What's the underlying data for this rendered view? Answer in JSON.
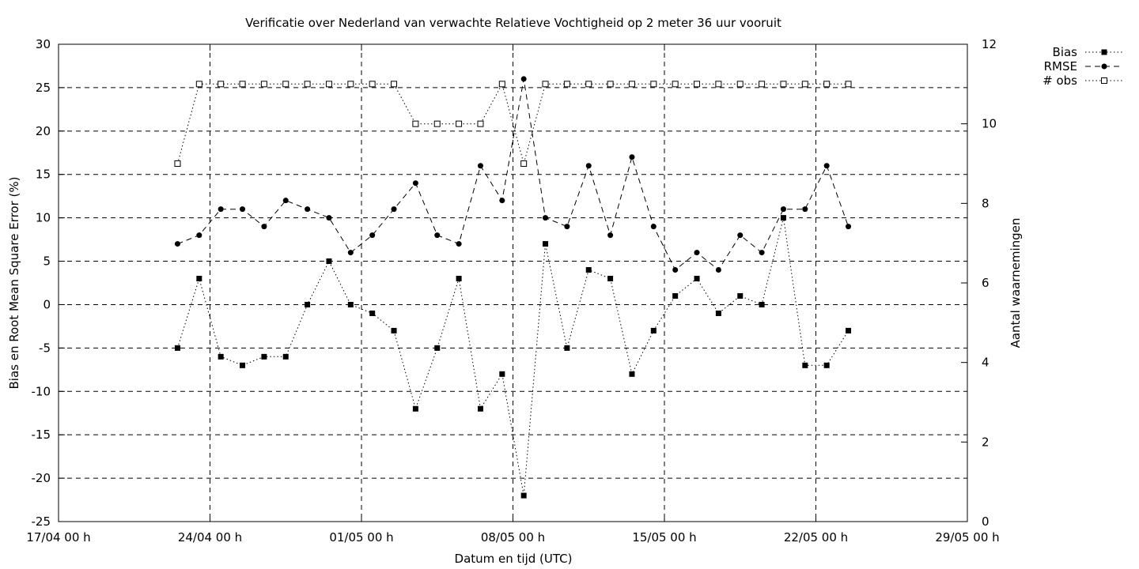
{
  "chart_data": {
    "type": "line",
    "title": "Verificatie over Nederland van verwachte Relatieve Vochtigheid op 2 meter 36 uur vooruit",
    "xlabel": "Datum en tijd (UTC)",
    "ylabel": "Bias en Root Mean Square Error (%)",
    "y2label": "Aantal waarnemingen",
    "x_range": [
      "2023-04-17",
      "2023-05-29"
    ],
    "x_ticks": [
      {
        "date": "2023-04-17",
        "label": "17/04 00 h"
      },
      {
        "date": "2023-04-24",
        "label": "24/04 00 h"
      },
      {
        "date": "2023-05-01",
        "label": "01/05 00 h"
      },
      {
        "date": "2023-05-08",
        "label": "08/05 00 h"
      },
      {
        "date": "2023-05-15",
        "label": "15/05 00 h"
      },
      {
        "date": "2023-05-22",
        "label": "22/05 00 h"
      },
      {
        "date": "2023-05-29",
        "label": "29/05 00 h"
      }
    ],
    "ylim": [
      -25,
      30
    ],
    "y_ticks": [
      -25,
      -20,
      -15,
      -10,
      -5,
      0,
      5,
      10,
      15,
      20,
      25,
      30
    ],
    "y2lim": [
      0,
      12
    ],
    "y2_ticks": [
      0,
      2,
      4,
      6,
      8,
      10,
      12
    ],
    "grid": true,
    "legend_position": "top-right outside",
    "x": [
      "2023-04-22 12:00",
      "2023-04-23 12:00",
      "2023-04-24 12:00",
      "2023-04-25 12:00",
      "2023-04-26 12:00",
      "2023-04-27 12:00",
      "2023-04-28 12:00",
      "2023-04-29 12:00",
      "2023-04-30 12:00",
      "2023-05-01 12:00",
      "2023-05-02 12:00",
      "2023-05-03 12:00",
      "2023-05-04 12:00",
      "2023-05-05 12:00",
      "2023-05-06 12:00",
      "2023-05-07 12:00",
      "2023-05-08 12:00",
      "2023-05-09 12:00",
      "2023-05-10 12:00",
      "2023-05-11 12:00",
      "2023-05-12 12:00",
      "2023-05-13 12:00",
      "2023-05-14 12:00",
      "2023-05-15 12:00",
      "2023-05-16 12:00",
      "2023-05-17 12:00",
      "2023-05-18 12:00",
      "2023-05-19 12:00",
      "2023-05-20 12:00",
      "2023-05-21 12:00",
      "2023-05-22 12:00",
      "2023-05-23 12:00"
    ],
    "series": [
      {
        "name": "Bias",
        "axis": "y1",
        "style": "dotted",
        "marker": "filled-square",
        "values": [
          -5,
          3,
          -6,
          -7,
          -6,
          -6,
          0,
          5,
          0,
          -1,
          -3,
          -12,
          -5,
          3,
          -12,
          -8,
          -22,
          7,
          -5,
          4,
          3,
          -8,
          -3,
          1,
          3,
          -1,
          1,
          0,
          10,
          -7,
          -7,
          -3
        ]
      },
      {
        "name": "RMSE",
        "axis": "y1",
        "style": "dashed",
        "marker": "filled-circle",
        "values": [
          7,
          8,
          11,
          11,
          9,
          12,
          11,
          10,
          6,
          8,
          11,
          14,
          8,
          7,
          16,
          12,
          26,
          10,
          9,
          16,
          8,
          17,
          9,
          4,
          6,
          4,
          8,
          6,
          11,
          11,
          16,
          9
        ]
      },
      {
        "name": "# obs",
        "axis": "y2",
        "style": "dotted",
        "marker": "open-square",
        "values": [
          9,
          11,
          11,
          11,
          11,
          11,
          11,
          11,
          11,
          11,
          11,
          10,
          10,
          10,
          10,
          11,
          9,
          11,
          11,
          11,
          11,
          11,
          11,
          11,
          11,
          11,
          11,
          11,
          11,
          11,
          11,
          11
        ]
      }
    ]
  }
}
